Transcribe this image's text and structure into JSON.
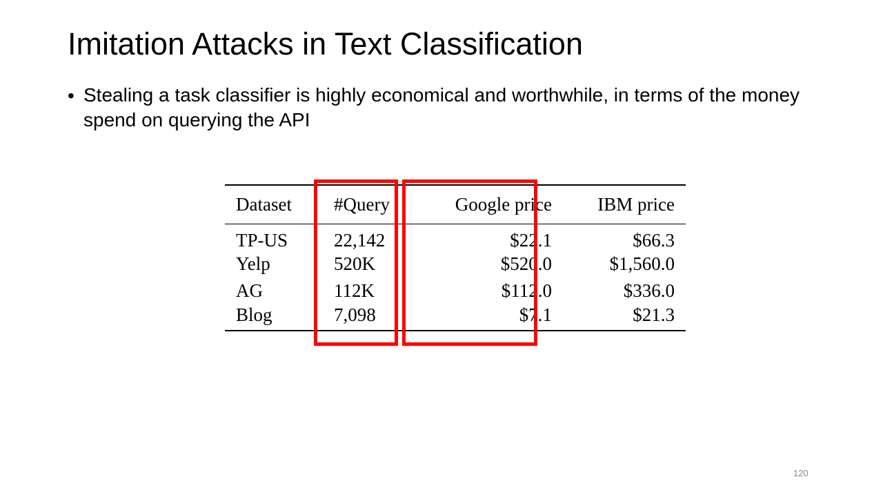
{
  "slide": {
    "title": "Imitation Attacks in Text Classification",
    "bullet": "Stealing a task classifier is highly economical and worthwhile, in terms of the money spend on querying the API",
    "bullet_symbol": "•",
    "page_number": "120"
  },
  "table": {
    "headers": {
      "dataset": "Dataset",
      "query": "#Query",
      "google": "Google price",
      "ibm": "IBM price"
    },
    "rows": [
      {
        "dataset": "TP-US",
        "query": "22,142",
        "google": "$22.1",
        "ibm": "$66.3"
      },
      {
        "dataset": "Yelp",
        "query": "520K",
        "google": "$520.0",
        "ibm": "$1,560.0"
      },
      {
        "dataset": "AG",
        "query": "112K",
        "google": "$112.0",
        "ibm": "$336.0"
      },
      {
        "dataset": "Blog",
        "query": "7,098",
        "google": "$7.1",
        "ibm": "$21.3"
      }
    ],
    "highlight_color": "#ff0000"
  }
}
